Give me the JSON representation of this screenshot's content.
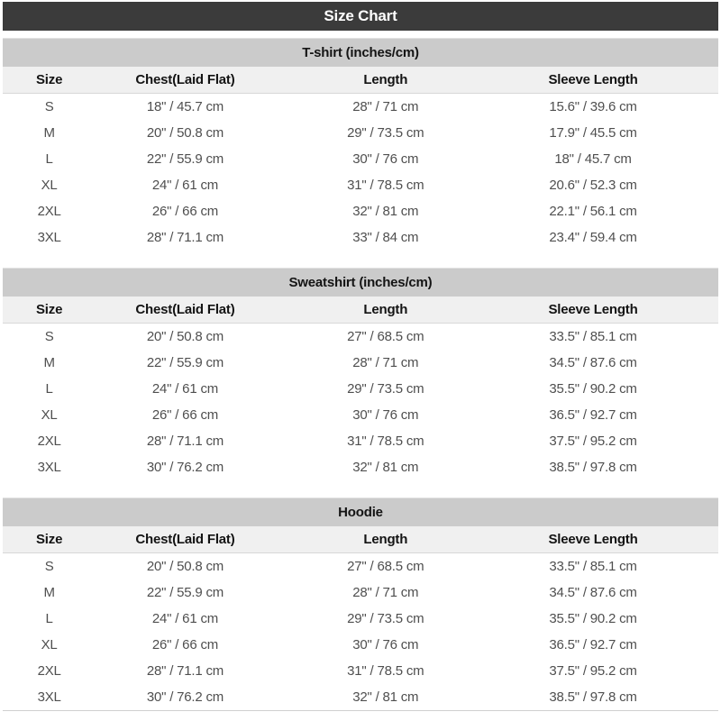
{
  "page_title": "Size Chart",
  "colors": {
    "title_bar_bg": "#3b3b3b",
    "title_bar_text": "#ffffff",
    "section_bar_bg": "#cbcbcb",
    "header_row_bg": "#f0f0f0",
    "header_text": "#141414",
    "cell_text": "#4f4f4f",
    "divider": "#cfcfcf"
  },
  "chart_data": [
    {
      "type": "table",
      "title": "T-shirt (inches/cm)",
      "columns": [
        "Size",
        "Chest(Laid Flat)",
        "Length",
        "Sleeve Length"
      ],
      "rows": [
        [
          "S",
          "18\" / 45.7 cm",
          "28\" / 71 cm",
          "15.6\" / 39.6 cm"
        ],
        [
          "M",
          "20\" / 50.8 cm",
          "29\" / 73.5 cm",
          "17.9\" / 45.5 cm"
        ],
        [
          "L",
          "22\" / 55.9 cm",
          "30\" / 76 cm",
          "18\" / 45.7 cm"
        ],
        [
          "XL",
          "24\" / 61 cm",
          "31\" / 78.5 cm",
          "20.6\" / 52.3 cm"
        ],
        [
          "2XL",
          "26\" / 66 cm",
          "32\" / 81 cm",
          "22.1\" / 56.1 cm"
        ],
        [
          "3XL",
          "28\" / 71.1 cm",
          "33\" / 84 cm",
          "23.4\" / 59.4 cm"
        ]
      ]
    },
    {
      "type": "table",
      "title": "Sweatshirt (inches/cm)",
      "columns": [
        "Size",
        "Chest(Laid Flat)",
        "Length",
        "Sleeve Length"
      ],
      "rows": [
        [
          "S",
          "20\" / 50.8 cm",
          "27\" / 68.5 cm",
          "33.5\" / 85.1 cm"
        ],
        [
          "M",
          "22\" / 55.9 cm",
          "28\" / 71 cm",
          "34.5\" / 87.6 cm"
        ],
        [
          "L",
          "24\" / 61 cm",
          "29\" / 73.5 cm",
          "35.5\" / 90.2 cm"
        ],
        [
          "XL",
          "26\" / 66 cm",
          "30\" / 76 cm",
          "36.5\" / 92.7 cm"
        ],
        [
          "2XL",
          "28\" / 71.1 cm",
          "31\" / 78.5 cm",
          "37.5\" / 95.2 cm"
        ],
        [
          "3XL",
          "30\" / 76.2 cm",
          "32\" / 81 cm",
          "38.5\" / 97.8 cm"
        ]
      ]
    },
    {
      "type": "table",
      "title": "Hoodie",
      "columns": [
        "Size",
        "Chest(Laid Flat)",
        "Length",
        "Sleeve Length"
      ],
      "rows": [
        [
          "S",
          "20\" / 50.8 cm",
          "27\" / 68.5 cm",
          "33.5\" / 85.1 cm"
        ],
        [
          "M",
          "22\" / 55.9 cm",
          "28\" / 71 cm",
          "34.5\" / 87.6 cm"
        ],
        [
          "L",
          "24\" / 61 cm",
          "29\" / 73.5 cm",
          "35.5\" / 90.2 cm"
        ],
        [
          "XL",
          "26\" / 66 cm",
          "30\" / 76 cm",
          "36.5\" / 92.7 cm"
        ],
        [
          "2XL",
          "28\" / 71.1 cm",
          "31\" / 78.5 cm",
          "37.5\" / 95.2 cm"
        ],
        [
          "3XL",
          "30\" / 76.2 cm",
          "32\" / 81 cm",
          "38.5\" / 97.8 cm"
        ]
      ]
    }
  ]
}
